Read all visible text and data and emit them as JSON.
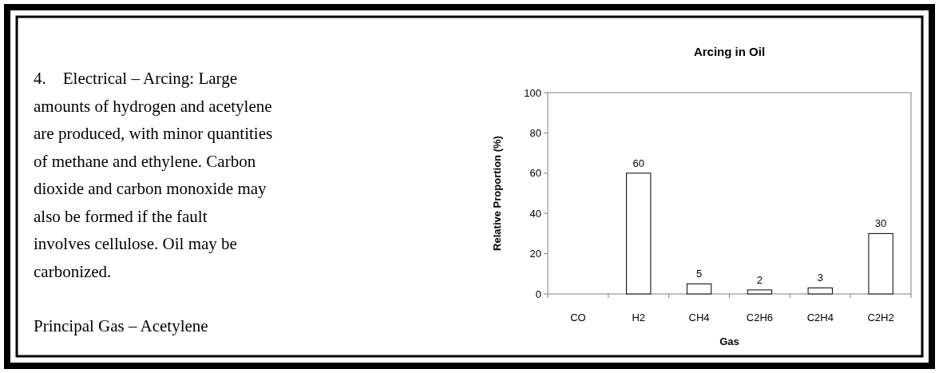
{
  "chart_data": {
    "type": "bar",
    "title": "Arcing in Oil",
    "xlabel": "Gas",
    "ylabel": "Relative Proportion (%)",
    "categories": [
      "CO",
      "H2",
      "CH4",
      "C2H6",
      "C2H4",
      "C2H2"
    ],
    "values": [
      0,
      60,
      5,
      2,
      3,
      30
    ],
    "value_labels": [
      null,
      "60",
      "5",
      "2",
      "3",
      "30"
    ],
    "color": "#ffffff",
    "ylim": [
      0,
      100
    ],
    "yticks": [
      0,
      20,
      40,
      60,
      80,
      100
    ],
    "grid": false,
    "annotations": [
      "4.    Electrical – Arcing: Large amounts of hydrogen and acetylene are produced, with minor quantities of methane and ethylene. Carbon dioxide and carbon monoxide may also be formed if the fault involves cellulose. Oil may be carbonized.",
      "Principal Gas – Acetylene"
    ]
  }
}
